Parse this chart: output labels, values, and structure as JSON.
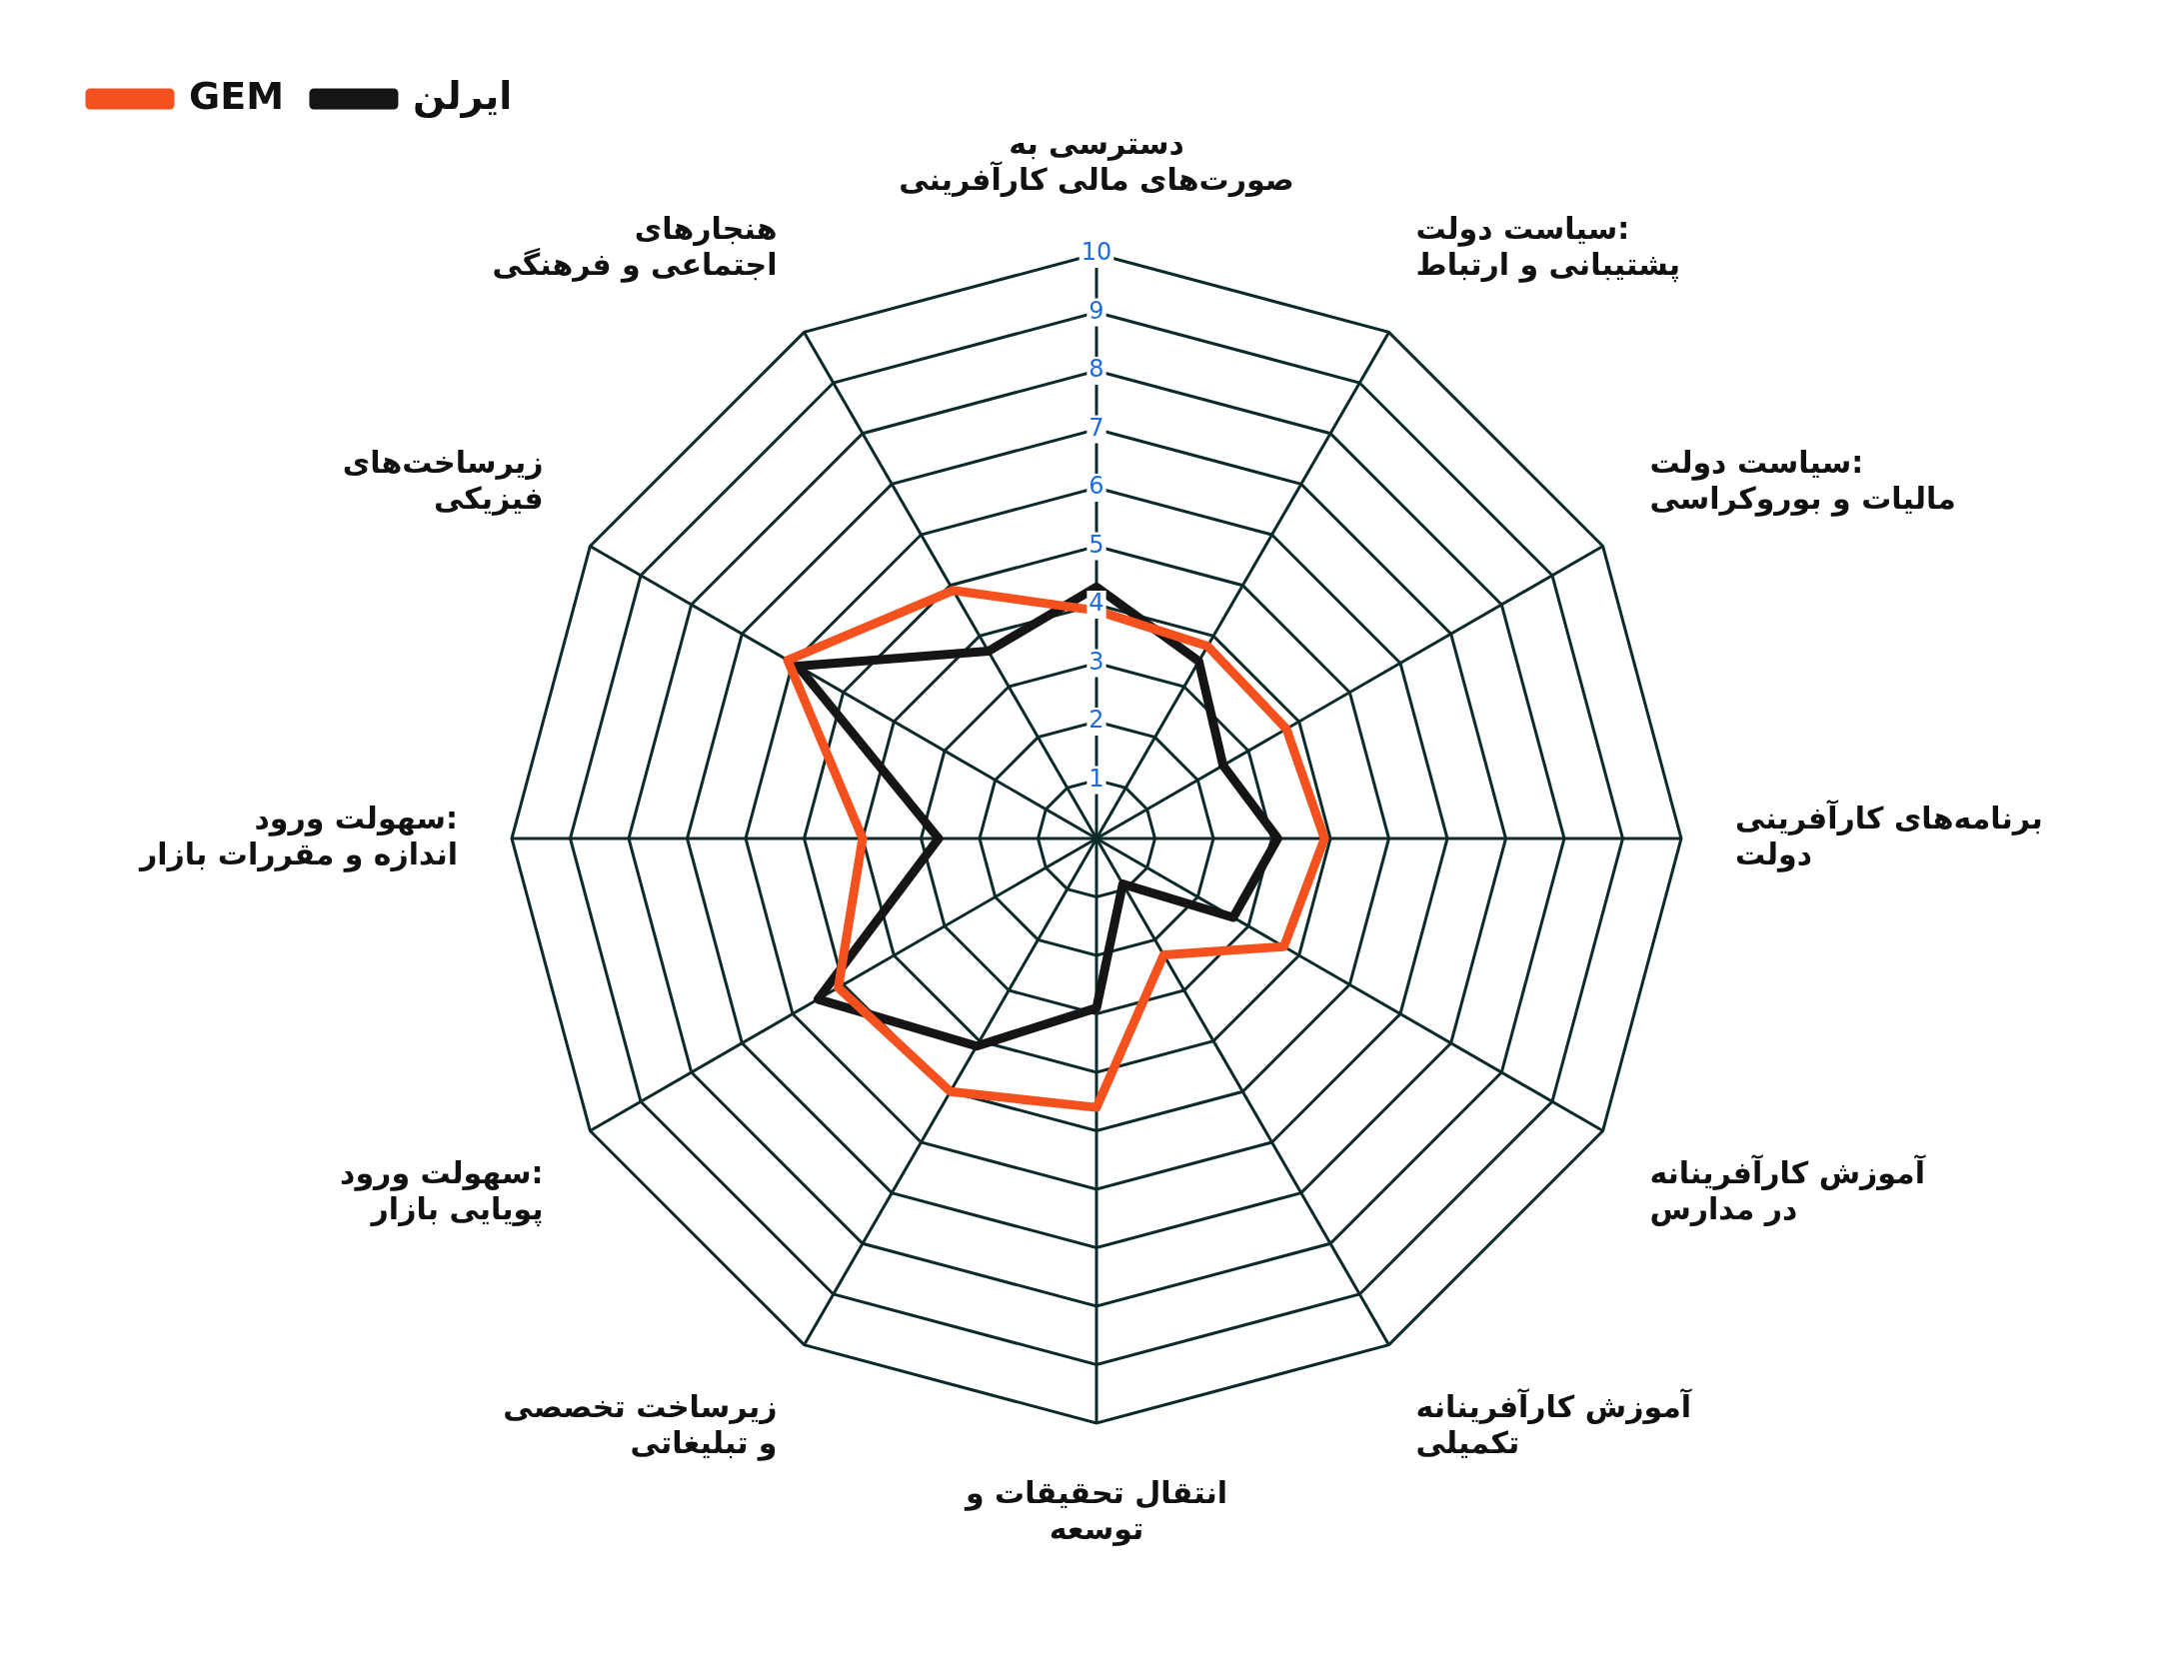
{
  "chart_data": {
    "type": "radar",
    "categories": [
      "دسترسی به\nصورت‌های مالی کارآفرینی",
      "سیاست دولت:\nپشتیبانی و ارتباط",
      "سیاست دولت:\nمالیات و بوروکراسی",
      "برنامه‌های کارآفرینی\nدولت",
      "آموزش کارآفرینانه\nدر مدارس",
      "آموزش کارآفرینانه\nتکمیلی",
      "انتقال تحقیقات و\nتوسعه",
      "زیرساخت تخصصی\nو تبلیغاتی",
      "سهولت ورود:\nپویایی بازار",
      "سهولت ورود:\nاندازه و مقررات بازار",
      "زیرساخت‌های\nفیزیکی",
      "هنجارهای\nاجتماعی و فرهنگی"
    ],
    "series": [
      {
        "name": "GEM",
        "color": "#f4511e",
        "values": [
          3.9,
          3.8,
          3.75,
          3.9,
          3.7,
          2.3,
          4.6,
          5.0,
          5.1,
          4.0,
          6.1,
          4.9
        ]
      },
      {
        "name": "ایرلن",
        "color": "#151515",
        "values": [
          4.3,
          3.5,
          2.5,
          3.1,
          2.7,
          0.9,
          2.9,
          4.1,
          5.5,
          2.7,
          5.9,
          3.7
        ]
      }
    ],
    "ylim": [
      0,
      10
    ],
    "yticks": [
      1,
      2,
      3,
      4,
      5,
      6,
      7,
      8,
      9,
      10
    ],
    "grid": true,
    "legend": "top left",
    "marker": "none",
    "line_style": "solid"
  }
}
